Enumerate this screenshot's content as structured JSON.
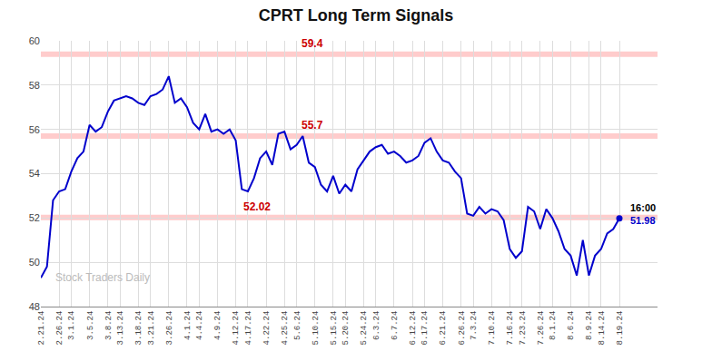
{
  "chart_data": {
    "type": "line",
    "title": "CPRT Long Term Signals",
    "watermark": "Stock Traders Daily",
    "color": "#0000cc",
    "grid": true,
    "ylim": [
      48,
      60
    ],
    "yticks": [
      48,
      50,
      52,
      54,
      56,
      58,
      60
    ],
    "reference_lines": [
      {
        "y": 59.4,
        "label": "59.4",
        "color": "#cc0000",
        "band_color": "#ffcccc"
      },
      {
        "y": 55.7,
        "label": "55.7",
        "color": "#cc0000",
        "band_color": "#ffcccc"
      },
      {
        "y": 52.02,
        "label": "52.02",
        "color": "#cc0000",
        "band_color": "#ffcccc"
      }
    ],
    "annotations": [
      {
        "text": "16:00",
        "color": "#000000"
      },
      {
        "text": "51.98",
        "color": "#0000cc"
      }
    ],
    "categories": [
      "2.21.24",
      null,
      null,
      "2.26.24",
      null,
      "3.1.24",
      null,
      null,
      "3.5.24",
      null,
      null,
      "3.8.24",
      null,
      "3.13.24",
      null,
      null,
      "3.18.24",
      null,
      "3.21.24",
      null,
      null,
      "3.26.24",
      null,
      null,
      "4.1.24",
      null,
      "4.4.24",
      null,
      null,
      "4.9.24",
      null,
      null,
      "4.12.24",
      null,
      "4.17.24",
      null,
      null,
      "4.22.24",
      null,
      null,
      "4.25.24",
      null,
      "5.6.24",
      null,
      null,
      "5.10.24",
      null,
      null,
      "5.15.24",
      null,
      "5.20.24",
      null,
      null,
      "5.24.24",
      null,
      "6.3.24",
      null,
      null,
      "6.7.24",
      null,
      null,
      "6.12.24",
      null,
      "6.17.24",
      null,
      null,
      "6.21.24",
      null,
      null,
      "6.26.24",
      null,
      "7.3.24",
      null,
      null,
      "7.10.24",
      null,
      null,
      "7.16.24",
      null,
      "7.23.24",
      null,
      null,
      "7.26.24",
      null,
      "8.1.24",
      null,
      null,
      "8.6.24",
      null,
      null,
      "8.9.24",
      null,
      "8.14.24",
      null,
      null,
      "8.19.24"
    ],
    "values": [
      49.3,
      49.8,
      52.8,
      53.2,
      53.3,
      54.1,
      54.7,
      55.0,
      56.2,
      55.9,
      56.1,
      56.8,
      57.3,
      57.4,
      57.5,
      57.4,
      57.2,
      57.1,
      57.5,
      57.6,
      57.8,
      58.4,
      57.2,
      57.4,
      57.0,
      56.3,
      56.0,
      56.7,
      55.9,
      56.0,
      55.8,
      56.0,
      55.5,
      53.3,
      53.2,
      53.8,
      54.7,
      55.0,
      54.4,
      55.8,
      55.9,
      55.1,
      55.3,
      55.7,
      54.5,
      54.3,
      53.5,
      53.2,
      53.9,
      53.1,
      53.5,
      53.2,
      54.2,
      54.6,
      55.0,
      55.2,
      55.3,
      54.9,
      55.0,
      54.8,
      54.5,
      54.6,
      54.8,
      55.4,
      55.6,
      55.0,
      54.6,
      54.5,
      54.1,
      53.8,
      52.2,
      52.1,
      52.5,
      52.2,
      52.4,
      52.3,
      51.9,
      50.6,
      50.2,
      50.5,
      52.5,
      52.3,
      51.5,
      52.4,
      52.0,
      51.4,
      50.6,
      50.3,
      49.4,
      51.0,
      49.4,
      50.3,
      50.6,
      51.3,
      51.5,
      51.98
    ]
  }
}
